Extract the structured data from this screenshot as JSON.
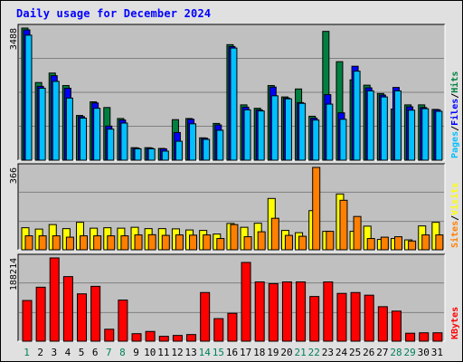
{
  "title": "Daily usage for December 2024",
  "chart_data": {
    "type": "bar",
    "title": "Daily usage for December 2024",
    "x": [
      "1",
      "2",
      "3",
      "4",
      "5",
      "6",
      "7",
      "8",
      "9",
      "10",
      "11",
      "12",
      "13",
      "14",
      "15",
      "16",
      "17",
      "18",
      "19",
      "20",
      "21",
      "22",
      "23",
      "24",
      "25",
      "26",
      "27",
      "28",
      "29",
      "30",
      "31"
    ],
    "weekend_days": [
      "1",
      "7",
      "8",
      "14",
      "15",
      "21",
      "22",
      "28",
      "29"
    ],
    "panels": [
      {
        "name": "hits-files-pages",
        "max_label": "3488",
        "ylim": [
          0,
          3488
        ],
        "series_labels": [
          "Pages",
          "Files",
          "Hits"
        ],
        "label_colors": [
          "#00c0ff",
          "#0000ff",
          "#008040"
        ],
        "series": [
          {
            "name": "Hits",
            "color": "#008040",
            "values": [
              3488,
              2050,
              2300,
              1970,
              1180,
              1540,
              1390,
              1100,
              330,
              330,
              310,
              1070,
              1100,
              590,
              970,
              3050,
              1460,
              1370,
              1970,
              1670,
              1880,
              1160,
              3400,
              2600,
              2120,
              1980,
              1760,
              1350,
              1460,
              1460,
              1340
            ]
          },
          {
            "name": "Files",
            "color": "#0000ff",
            "values": [
              3440,
              1950,
              2230,
              1900,
              1150,
              1510,
              900,
              1060,
              320,
              320,
              300,
              730,
              1080,
              580,
              930,
              3000,
              1400,
              1330,
              1930,
              1640,
              1520,
              1110,
              1730,
              1250,
              2480,
              1910,
              1720,
              1920,
              1410,
              1390,
              1330
            ]
          },
          {
            "name": "Pages",
            "color": "#00c0ff",
            "values": [
              3300,
              1900,
              2080,
              1640,
              1110,
              1370,
              820,
              980,
              300,
              300,
              240,
              500,
              960,
              550,
              790,
              2960,
              1330,
              1300,
              1700,
              1620,
              1500,
              1060,
              1480,
              1080,
              2350,
              1830,
              1670,
              1830,
              1320,
              1360,
              1290
            ]
          }
        ]
      },
      {
        "name": "visits-sites",
        "max_label": "366",
        "ylim": [
          0,
          366
        ],
        "series_labels": [
          "Sites",
          "Visits"
        ],
        "label_colors": [
          "#ff8000",
          "#ffff00"
        ],
        "series": [
          {
            "name": "Visits",
            "color": "#ffff00",
            "values": [
              98,
              92,
              112,
              94,
              122,
              96,
              98,
              96,
              100,
              94,
              94,
              93,
              88,
              86,
              70,
              117,
              100,
              118,
              228,
              86,
              76,
              174,
              82,
              248,
              82,
              105,
              46,
              50,
              44,
              106,
              122
            ]
          },
          {
            "name": "Sites",
            "color": "#ff8000",
            "values": [
              62,
              62,
              62,
              56,
              62,
              62,
              62,
              62,
              66,
              67,
              64,
              66,
              65,
              66,
              50,
              112,
              58,
              80,
              140,
              64,
              60,
              366,
              82,
              220,
              148,
              50,
              56,
              58,
              39,
              66,
              66
            ]
          }
        ]
      },
      {
        "name": "kbytes",
        "max_label": "188214",
        "ylim": [
          0,
          188214
        ],
        "series_labels": [
          "KBytes"
        ],
        "label_colors": [
          "#ff0000"
        ],
        "series": [
          {
            "name": "KBytes",
            "color": "#ff0000",
            "values": [
              92000,
              122000,
              188214,
              146000,
              107000,
              124000,
              27000,
              93000,
              17000,
              22000,
              11000,
              13000,
              15000,
              110000,
              51000,
              63000,
              178000,
              134000,
              130000,
              134000,
              134000,
              101000,
              134000,
              108000,
              110000,
              104000,
              78000,
              68000,
              18000,
              19000,
              19000
            ]
          }
        ]
      }
    ]
  }
}
